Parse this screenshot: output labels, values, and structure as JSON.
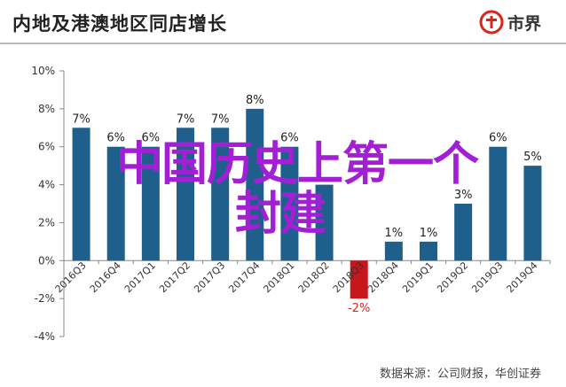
{
  "header": {
    "title": "内地及港澳地区同店增长",
    "logo_text": "市界"
  },
  "footer": {
    "source": "数据来源：公司财报，华创证券"
  },
  "overlay": {
    "line1": "中国历史上第一个",
    "line2": "封建"
  },
  "colors": {
    "bar": "#1f5f8b",
    "negative_bar": "#c8161d",
    "negative_label": "#d9251c",
    "overlay_text": "#a21fd6"
  },
  "chart_data": {
    "type": "bar",
    "categories": [
      "2016Q3",
      "2016Q4",
      "2017Q1",
      "2017Q2",
      "2017Q3",
      "2017Q4",
      "2018Q1",
      "2018Q2",
      "2018Q3",
      "2018Q4",
      "2019Q1",
      "2019Q2",
      "2019Q3",
      "2019Q4"
    ],
    "values": [
      7,
      6,
      6,
      7,
      7,
      8,
      6,
      4,
      -2,
      1,
      1,
      3,
      6,
      5
    ],
    "data_labels": [
      "7%",
      "6%",
      "6%",
      "7%",
      "7%",
      "8%",
      "6%",
      "",
      "-2%",
      "1%",
      "1%",
      "3%",
      "6%",
      "5%"
    ],
    "yticks": [
      "10%",
      "8%",
      "6%",
      "4%",
      "2%",
      "0%",
      "-2%",
      "-4%"
    ],
    "ylim": [
      -4,
      10
    ],
    "grid": false,
    "legend": "none"
  }
}
